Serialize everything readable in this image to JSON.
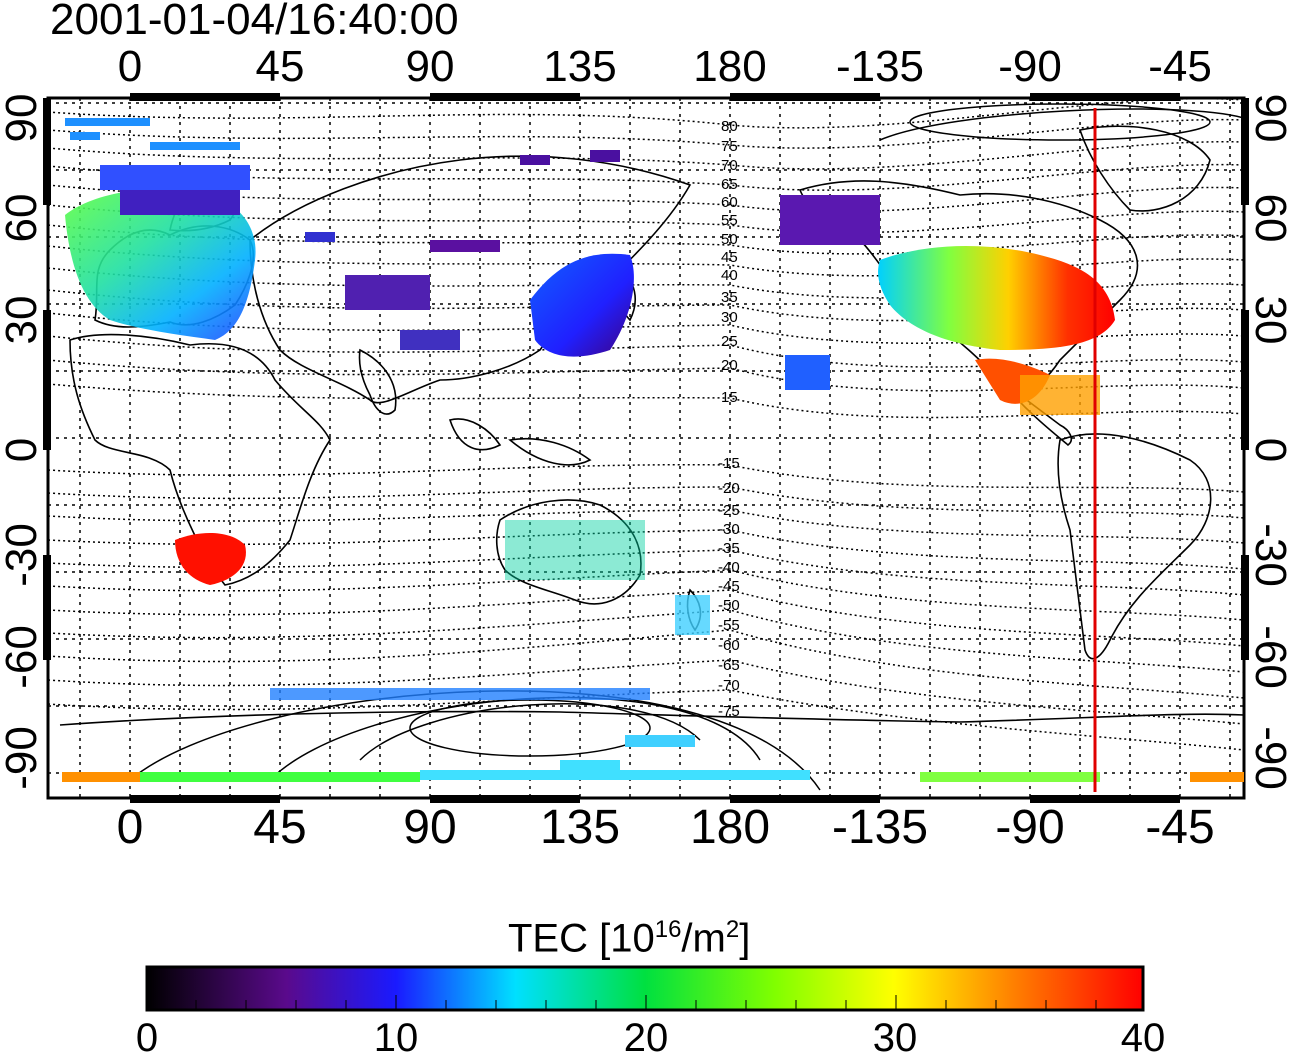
{
  "title": "2001-01-04/16:40:00",
  "map": {
    "top_lon_ticks": [
      "0",
      "45",
      "90",
      "135",
      "180",
      "-135",
      "-90",
      "-45"
    ],
    "bottom_lon_ticks": [
      "0",
      "45",
      "90",
      "135",
      "180",
      "-135",
      "-90",
      "-45"
    ],
    "left_lat_ticks": [
      "90",
      "60",
      "30",
      "0",
      "-30",
      "-60",
      "-90"
    ],
    "right_lat_ticks": [
      "90",
      "60",
      "30",
      "0",
      "-30",
      "-60",
      "-90"
    ],
    "contour_labels": [
      "80",
      "75",
      "70",
      "65",
      "60",
      "55",
      "50",
      "45",
      "40",
      "35",
      "30",
      "25",
      "20",
      "15",
      "-15",
      "-20",
      "-25",
      "-30",
      "-35",
      "-40",
      "-45",
      "-50",
      "-55",
      "-60",
      "-65",
      "-70",
      "-75"
    ],
    "terminator_color": "#e00000"
  },
  "colorbar": {
    "label_main": "TEC  [10",
    "label_sup": "16",
    "label_mid": "/m",
    "label_sup2": "2",
    "label_end": "]",
    "ticks": [
      "0",
      "10",
      "20",
      "30",
      "40"
    ],
    "min": 0,
    "max": 40,
    "colors": [
      "#000000",
      "#5a0a8c",
      "#1a1aff",
      "#00e0ff",
      "#00e040",
      "#ffff00",
      "#ff8000",
      "#ff0000"
    ]
  }
}
